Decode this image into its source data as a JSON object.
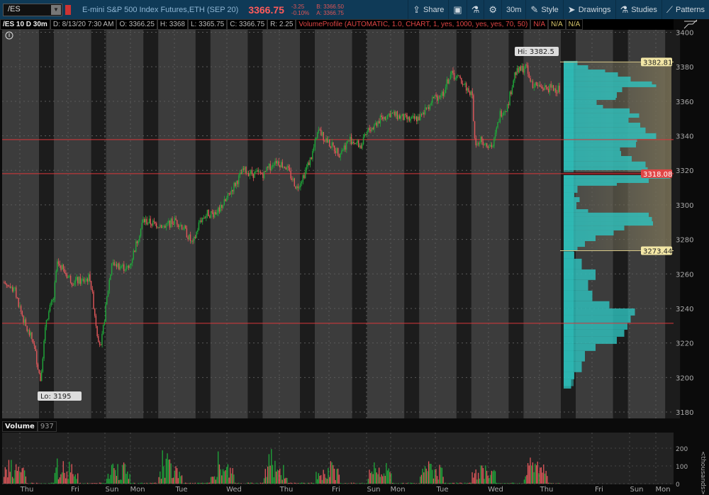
{
  "toolbar": {
    "symbol": "/ES",
    "description": "E-mini S&P 500 Index Futures,ETH (SEP 20)",
    "last": "3366.75",
    "change": "-3.25",
    "change_pct": "-0.10%",
    "bid": "B: 3366.50",
    "ask": "A: 3366.75",
    "buttons": [
      {
        "label": "Share",
        "icon": "share-icon"
      },
      {
        "label": "",
        "icon": "alert-icon"
      },
      {
        "label": "",
        "icon": "flask-icon"
      },
      {
        "label": "",
        "icon": "gear-icon"
      },
      {
        "label": "30m",
        "icon": ""
      },
      {
        "label": "Style",
        "icon": "style-icon"
      },
      {
        "label": "Drawings",
        "icon": "cursor-icon"
      },
      {
        "label": "Studies",
        "icon": "flask-icon"
      },
      {
        "label": "Patterns",
        "icon": "patterns-icon"
      }
    ]
  },
  "info": {
    "title": "/ES 10 D 30m",
    "date": "D: 8/13/20 7:30 AM",
    "open": "O: 3366.25",
    "high": "H: 3368",
    "low": "L: 3365.75",
    "close": "C: 3366.75",
    "range": "R: 2.25",
    "study": "VolumeProfile (AUTOMATIC, 1.0, CHART, 1, yes, 1000, yes, yes, 70, 50)",
    "na1": "N/A",
    "na2": "N/A",
    "na3": "N/A"
  },
  "volume": {
    "label": "Volume",
    "value": "937",
    "unit": "<thousands>",
    "ticks": [
      "200",
      "100",
      "0"
    ]
  },
  "colors": {
    "up": "#1fa83a",
    "down": "#e0575a",
    "bg": "#3c3c3c",
    "band": "#1c1c1c",
    "profile": "#2ec4c0",
    "value_area": "#7a7257",
    "toolbar": "#0f3a57"
  },
  "chart_data": {
    "type": "candlestick",
    "ylim": [
      3180,
      3400
    ],
    "yticks": [
      "3400",
      "3380",
      "3360",
      "3340",
      "3320",
      "3300",
      "3280",
      "3260",
      "3240",
      "3220",
      "3200",
      "3180"
    ],
    "xticks": [
      "Thu",
      "Fri",
      "Sun",
      "Mon",
      "Tue",
      "Wed",
      "Thu",
      "Fri",
      "Sun",
      "Mon",
      "Tue",
      "Wed",
      "Thu",
      "Fri",
      "Sun",
      "Mon"
    ],
    "approx_close_path": [
      [
        0,
        3255
      ],
      [
        9,
        3250
      ],
      [
        18,
        3229
      ],
      [
        24,
        3221
      ],
      [
        30,
        3199
      ],
      [
        35,
        3234
      ],
      [
        41,
        3246
      ],
      [
        44,
        3267
      ],
      [
        50,
        3261
      ],
      [
        56,
        3256
      ],
      [
        65,
        3256
      ],
      [
        71,
        3258
      ],
      [
        77,
        3226
      ],
      [
        80,
        3217
      ],
      [
        85,
        3246
      ],
      [
        89,
        3267
      ],
      [
        94,
        3265
      ],
      [
        103,
        3263
      ],
      [
        109,
        3277
      ],
      [
        115,
        3291
      ],
      [
        124,
        3289
      ],
      [
        133,
        3288
      ],
      [
        142,
        3291
      ],
      [
        148,
        3287
      ],
      [
        156,
        3277
      ],
      [
        162,
        3291
      ],
      [
        168,
        3295
      ],
      [
        174,
        3295
      ],
      [
        183,
        3302
      ],
      [
        189,
        3310
      ],
      [
        198,
        3320
      ],
      [
        206,
        3318
      ],
      [
        215,
        3318
      ],
      [
        224,
        3326
      ],
      [
        233,
        3322
      ],
      [
        242,
        3310
      ],
      [
        248,
        3318
      ],
      [
        254,
        3328
      ],
      [
        260,
        3343
      ],
      [
        268,
        3336
      ],
      [
        277,
        3330
      ],
      [
        286,
        3338
      ],
      [
        295,
        3334
      ],
      [
        301,
        3343
      ],
      [
        310,
        3349
      ],
      [
        319,
        3353
      ],
      [
        327,
        3351
      ],
      [
        336,
        3349
      ],
      [
        345,
        3351
      ],
      [
        354,
        3361
      ],
      [
        363,
        3365
      ],
      [
        369,
        3376
      ],
      [
        378,
        3372
      ],
      [
        387,
        3363
      ],
      [
        389,
        3337
      ],
      [
        395,
        3337
      ],
      [
        404,
        3334
      ],
      [
        410,
        3353
      ],
      [
        416,
        3357
      ],
      [
        422,
        3376
      ],
      [
        431,
        3380
      ],
      [
        437,
        3370
      ],
      [
        445,
        3368
      ],
      [
        460,
        3367
      ]
    ],
    "hi_label": "Hi: 3382.5",
    "lo_label": "Lo: 3195",
    "levels": {
      "value_area_high": "3382.81",
      "poc": "3318.08",
      "value_area_low": "3273.44"
    },
    "red_lines": [
      3337.8,
      3231.4
    ],
    "volume_profile": [
      [
        3380.9,
        3383.4,
        13
      ],
      [
        3378.4,
        3380.9,
        23
      ],
      [
        3376.8,
        3378.4,
        39
      ],
      [
        3374.3,
        3376.8,
        51
      ],
      [
        3371.5,
        3374.3,
        63
      ],
      [
        3369.8,
        3371.5,
        83
      ],
      [
        3368.2,
        3369.8,
        87
      ],
      [
        3365.3,
        3368.2,
        55
      ],
      [
        3362.0,
        3365.3,
        50
      ],
      [
        3360.8,
        3362.0,
        49
      ],
      [
        3357.9,
        3360.8,
        31
      ],
      [
        3355.9,
        3357.9,
        37
      ],
      [
        3353.0,
        3355.9,
        62
      ],
      [
        3350.5,
        3353.0,
        71
      ],
      [
        3347.6,
        3350.5,
        61
      ],
      [
        3344.8,
        3347.6,
        72
      ],
      [
        3341.5,
        3344.8,
        77
      ],
      [
        3338.2,
        3341.5,
        87
      ],
      [
        3336.5,
        3338.2,
        69
      ],
      [
        3333.3,
        3336.5,
        68
      ],
      [
        3331.2,
        3333.3,
        53
      ],
      [
        3328.3,
        3331.2,
        54
      ],
      [
        3325.1,
        3328.3,
        64
      ],
      [
        3321.8,
        3325.1,
        77
      ],
      [
        3320.1,
        3321.8,
        79
      ],
      [
        3315.2,
        3318.9,
        100
      ],
      [
        3312.7,
        3315.2,
        80
      ],
      [
        3311.1,
        3312.7,
        50
      ],
      [
        3307.0,
        3311.1,
        13
      ],
      [
        3304.5,
        3307.0,
        10
      ],
      [
        3301.6,
        3304.5,
        15
      ],
      [
        3297.5,
        3301.6,
        12
      ],
      [
        3295.5,
        3297.5,
        23
      ],
      [
        3293.0,
        3295.5,
        80
      ],
      [
        3290.5,
        3293.0,
        83
      ],
      [
        3288.0,
        3290.5,
        84
      ],
      [
        3285.2,
        3288.0,
        57
      ],
      [
        3282.3,
        3285.2,
        47
      ],
      [
        3279.0,
        3282.3,
        30
      ],
      [
        3275.7,
        3279.0,
        20
      ],
      [
        3273.7,
        3275.7,
        13
      ],
      [
        3268.8,
        3272.9,
        10
      ],
      [
        3262.6,
        3268.8,
        17
      ],
      [
        3256.5,
        3262.6,
        30
      ],
      [
        3250.3,
        3256.5,
        23
      ],
      [
        3244.2,
        3250.3,
        27
      ],
      [
        3240.0,
        3244.2,
        43
      ],
      [
        3235.9,
        3240.0,
        67
      ],
      [
        3231.8,
        3235.9,
        63
      ],
      [
        3227.7,
        3231.8,
        60
      ],
      [
        3223.6,
        3227.7,
        57
      ],
      [
        3219.5,
        3223.6,
        50
      ],
      [
        3215.4,
        3219.5,
        30
      ],
      [
        3209.3,
        3215.4,
        20
      ],
      [
        3203.1,
        3209.3,
        17
      ],
      [
        3199.0,
        3203.1,
        10
      ],
      [
        3193.6,
        3199.0,
        7
      ]
    ]
  }
}
